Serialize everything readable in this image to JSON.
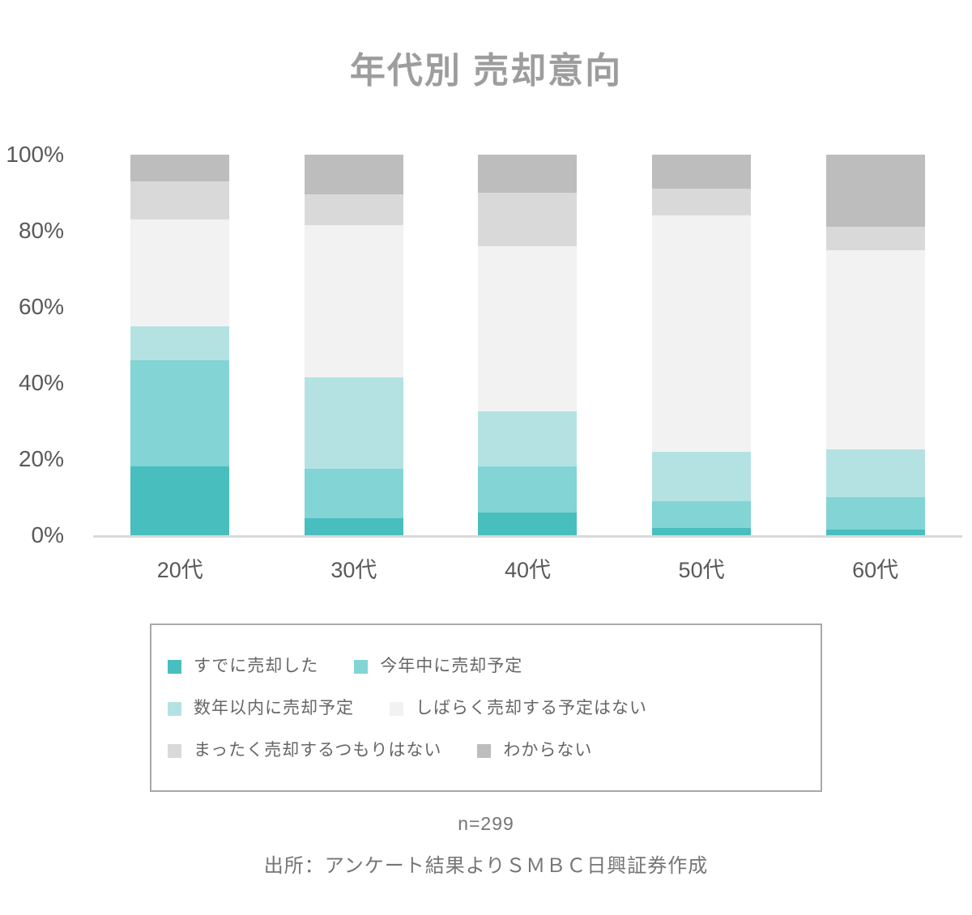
{
  "title": "年代別 売却意向",
  "footer": {
    "sample_size": "n=299",
    "source": "出所：アンケート結果よりＳＭＢＣ日興証券作成"
  },
  "colors": {
    "title_text": "#9d9d9d",
    "axis_text": "#595959",
    "axis_line": "#d9d9d9",
    "legend_text": "#666666",
    "legend_border": "#a9a9a9",
    "footer_text": "#757575"
  },
  "chart_data": {
    "type": "bar",
    "subtype": "stacked-percentage-column",
    "title": "年代別 売却意向",
    "categories": [
      "20代",
      "30代",
      "40代",
      "50代",
      "60代"
    ],
    "series": [
      {
        "name": "すでに売却した",
        "color": "#49bebe",
        "values": [
          18,
          4.5,
          6,
          2,
          1.5
        ]
      },
      {
        "name": "今年中に売却予定",
        "color": "#83d4d4",
        "values": [
          28,
          13,
          12,
          7,
          8.5
        ]
      },
      {
        "name": "数年以内に売却予定",
        "color": "#b4e2e2",
        "values": [
          9,
          24,
          14.5,
          13,
          12.5
        ]
      },
      {
        "name": "しばらく売却する予定はない",
        "color": "#f2f2f2",
        "values": [
          28,
          40,
          43.5,
          62,
          52.5
        ]
      },
      {
        "name": "まったく売却するつもりはない",
        "color": "#d9d9d9",
        "values": [
          10,
          8,
          14,
          7,
          6
        ]
      },
      {
        "name": "わからない",
        "color": "#bdbdbd",
        "values": [
          7,
          10.5,
          10,
          9,
          19
        ]
      }
    ],
    "y_axis": {
      "min": 0,
      "max": 100,
      "tick_step": 20,
      "tick_labels": [
        "0%",
        "20%",
        "40%",
        "60%",
        "80%",
        "100%"
      ]
    },
    "grid": false,
    "legend_position": "bottom",
    "legend_rows": [
      [
        0,
        1
      ],
      [
        2,
        3
      ],
      [
        4,
        5
      ]
    ]
  }
}
